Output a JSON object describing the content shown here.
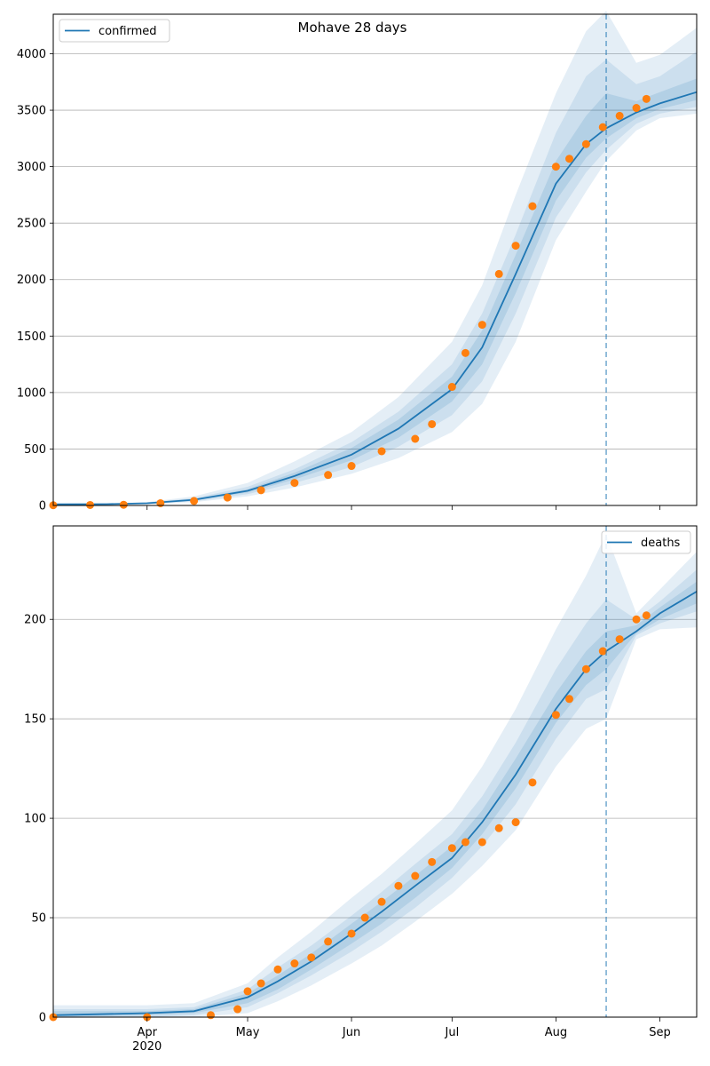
{
  "figure": {
    "title": "Mohave 28 days"
  },
  "x_axis": {
    "ticks": [
      {
        "date": "2020-04-01",
        "label": "Apr"
      },
      {
        "date": "2020-05-01",
        "label": "May"
      },
      {
        "date": "2020-06-01",
        "label": "Jun"
      },
      {
        "date": "2020-07-01",
        "label": "Jul"
      },
      {
        "date": "2020-08-01",
        "label": "Aug"
      },
      {
        "date": "2020-09-01",
        "label": "Sep"
      }
    ],
    "year_label": "2020",
    "range": [
      "2020-03-04",
      "2020-09-12"
    ],
    "forecast_start": "2020-08-16"
  },
  "colors": {
    "model_line": "#1f77b4",
    "observed": "#ff7f0e",
    "band": "#1f77b4",
    "grid": "#b0b0b0"
  },
  "chart_data": [
    {
      "type": "line",
      "panel": "top",
      "legend": [
        "confirmed"
      ],
      "legend_position": "upper-left",
      "ylim": [
        0,
        4350
      ],
      "yticks": [
        0,
        500,
        1000,
        1500,
        2000,
        2500,
        3000,
        3500,
        4000
      ],
      "grid": "y",
      "model": {
        "dates": [
          "2020-03-04",
          "2020-03-20",
          "2020-04-01",
          "2020-04-15",
          "2020-05-01",
          "2020-05-15",
          "2020-06-01",
          "2020-06-15",
          "2020-07-01",
          "2020-07-10",
          "2020-07-20",
          "2020-08-01",
          "2020-08-10",
          "2020-08-16",
          "2020-08-25",
          "2020-09-01",
          "2020-09-12"
        ],
        "values": [
          10,
          12,
          20,
          50,
          130,
          260,
          450,
          680,
          1030,
          1400,
          2050,
          2850,
          3200,
          3340,
          3480,
          3560,
          3660
        ]
      },
      "bands": [
        {
          "level": "outer",
          "lower": [
            10,
            10,
            12,
            30,
            80,
            160,
            280,
            420,
            650,
            900,
            1450,
            2350,
            2780,
            3050,
            3320,
            3430,
            3470
          ],
          "upper": [
            10,
            14,
            30,
            80,
            200,
            390,
            650,
            960,
            1450,
            1950,
            2750,
            3650,
            4200,
            4380,
            3920,
            3990,
            4230
          ]
        },
        {
          "level": "middle",
          "lower": [
            10,
            11,
            15,
            38,
            100,
            200,
            340,
            520,
            800,
            1100,
            1700,
            2550,
            2950,
            3150,
            3380,
            3470,
            3530
          ],
          "upper": [
            10,
            13,
            25,
            66,
            165,
            320,
            560,
            830,
            1250,
            1700,
            2400,
            3300,
            3800,
            3950,
            3730,
            3800,
            4020
          ]
        },
        {
          "level": "inner",
          "lower": [
            10,
            11,
            17,
            44,
            115,
            230,
            400,
            600,
            920,
            1250,
            1880,
            2700,
            3080,
            3250,
            3430,
            3510,
            3590
          ],
          "upper": [
            10,
            12,
            23,
            57,
            145,
            290,
            510,
            760,
            1140,
            1550,
            2220,
            3050,
            3450,
            3650,
            3580,
            3660,
            3780
          ]
        }
      ],
      "observed": {
        "dates": [
          "2020-03-04",
          "2020-03-15",
          "2020-03-25",
          "2020-04-05",
          "2020-04-15",
          "2020-04-25",
          "2020-05-05",
          "2020-05-15",
          "2020-05-25",
          "2020-06-01",
          "2020-06-10",
          "2020-06-20",
          "2020-06-25",
          "2020-07-01",
          "2020-07-05",
          "2020-07-10",
          "2020-07-15",
          "2020-07-20",
          "2020-07-25",
          "2020-08-01",
          "2020-08-05",
          "2020-08-10",
          "2020-08-15",
          "2020-08-20",
          "2020-08-25",
          "2020-08-28"
        ],
        "values": [
          2,
          4,
          6,
          20,
          40,
          70,
          135,
          200,
          270,
          350,
          480,
          590,
          720,
          1050,
          1350,
          1600,
          2050,
          2300,
          2650,
          3000,
          3070,
          3200,
          3350,
          3450,
          3520,
          3600
        ]
      }
    },
    {
      "type": "line",
      "panel": "bottom",
      "legend": [
        "deaths"
      ],
      "legend_position": "upper-right",
      "ylim": [
        0,
        247
      ],
      "yticks": [
        0,
        50,
        100,
        150,
        200
      ],
      "grid": "y",
      "model": {
        "dates": [
          "2020-03-04",
          "2020-04-01",
          "2020-04-15",
          "2020-05-01",
          "2020-05-10",
          "2020-05-20",
          "2020-06-01",
          "2020-06-10",
          "2020-06-20",
          "2020-07-01",
          "2020-07-10",
          "2020-07-20",
          "2020-08-01",
          "2020-08-10",
          "2020-08-16",
          "2020-08-25",
          "2020-09-01",
          "2020-09-12"
        ],
        "values": [
          1,
          2,
          3,
          10,
          18,
          28,
          42,
          53,
          66,
          80,
          98,
          122,
          155,
          175,
          184,
          194,
          203,
          214
        ]
      },
      "bands": [
        {
          "level": "outer",
          "lower": [
            0,
            0,
            0,
            2,
            8,
            16,
            27,
            36,
            48,
            62,
            76,
            94,
            126,
            145,
            150,
            190,
            195,
            196
          ],
          "upper": [
            6,
            6,
            7,
            17,
            30,
            43,
            60,
            72,
            87,
            104,
            126,
            155,
            195,
            222,
            243,
            203,
            215,
            234
          ]
        },
        {
          "level": "middle",
          "lower": [
            0,
            0,
            1,
            5,
            12,
            21,
            33,
            43,
            55,
            70,
            86,
            107,
            140,
            160,
            165,
            192,
            198,
            204
          ],
          "upper": [
            4,
            4,
            5,
            14,
            25,
            36,
            51,
            63,
            77,
            92,
            111,
            138,
            175,
            198,
            210,
            200,
            209,
            225
          ]
        },
        {
          "level": "inner",
          "lower": [
            0,
            1,
            2,
            7,
            14,
            24,
            37,
            47,
            60,
            75,
            92,
            115,
            148,
            167,
            175,
            193,
            200,
            208
          ],
          "upper": [
            3,
            3,
            4,
            12,
            21,
            32,
            47,
            58,
            71,
            86,
            104,
            130,
            163,
            184,
            194,
            197,
            206,
            219
          ]
        }
      ],
      "observed": {
        "dates": [
          "2020-03-04",
          "2020-04-01",
          "2020-04-20",
          "2020-04-28",
          "2020-05-01",
          "2020-05-05",
          "2020-05-10",
          "2020-05-15",
          "2020-05-20",
          "2020-05-25",
          "2020-06-01",
          "2020-06-05",
          "2020-06-10",
          "2020-06-15",
          "2020-06-20",
          "2020-06-25",
          "2020-07-01",
          "2020-07-05",
          "2020-07-10",
          "2020-07-15",
          "2020-07-20",
          "2020-07-25",
          "2020-08-01",
          "2020-08-05",
          "2020-08-10",
          "2020-08-15",
          "2020-08-20",
          "2020-08-25",
          "2020-08-28"
        ],
        "values": [
          0,
          0,
          1,
          4,
          13,
          17,
          24,
          27,
          30,
          38,
          42,
          50,
          58,
          66,
          71,
          78,
          85,
          88,
          88,
          95,
          98,
          118,
          152,
          160,
          175,
          184,
          190,
          200,
          202
        ]
      }
    }
  ]
}
